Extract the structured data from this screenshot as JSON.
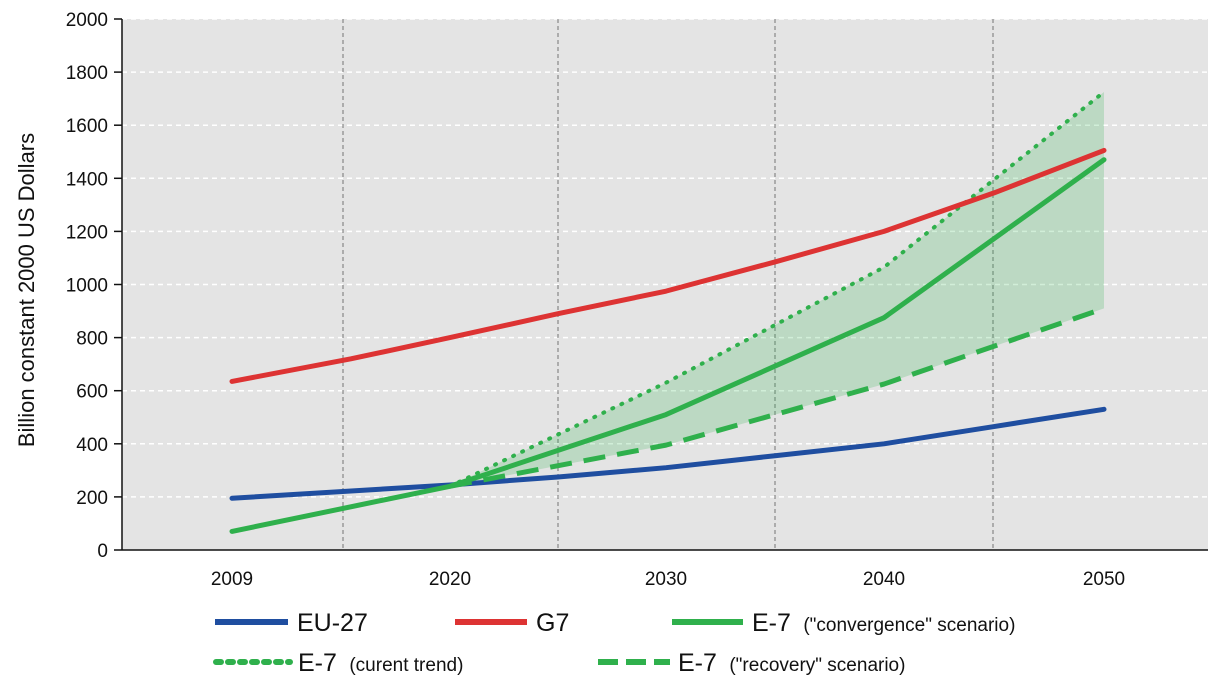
{
  "chart_data": {
    "type": "line",
    "ylabel": "Billion constant 2000 US Dollars",
    "xlabel": "",
    "ylim": [
      0,
      2000
    ],
    "yticks": [
      0,
      200,
      400,
      600,
      800,
      1000,
      1200,
      1400,
      1600,
      1800,
      2000
    ],
    "categories": [
      "2009",
      "2020",
      "2030",
      "2040",
      "2050"
    ],
    "grid": "vertical dashed",
    "legend_placement": "bottom",
    "series": [
      {
        "name": "EU-27",
        "color": "#1f4ea0",
        "style": "solid",
        "x": [
          2009,
          2020,
          2025,
          2030,
          2035,
          2040,
          2045,
          2050
        ],
        "values": [
          195,
          245,
          275,
          310,
          355,
          400,
          465,
          530
        ]
      },
      {
        "name": "G7",
        "color": "#dd3333",
        "style": "solid",
        "x": [
          2009,
          2015,
          2020,
          2025,
          2030,
          2035,
          2040,
          2045,
          2050
        ],
        "values": [
          635,
          720,
          800,
          890,
          975,
          1085,
          1200,
          1345,
          1505
        ]
      },
      {
        "name_parts": [
          "E-7",
          "(\"convergence\" scenario)"
        ],
        "color": "#2fb04c",
        "style": "solid",
        "x": [
          2009,
          2020,
          2030,
          2040,
          2050
        ],
        "values": [
          70,
          240,
          510,
          875,
          1470
        ]
      },
      {
        "name_parts": [
          "E-7",
          "(curent trend)"
        ],
        "color": "#2fb04c",
        "style": "dotted",
        "x": [
          2020,
          2030,
          2040,
          2050
        ],
        "values": [
          240,
          630,
          1065,
          1725
        ]
      },
      {
        "name_parts": [
          "E-7",
          "(\"recovery\" scenario)"
        ],
        "color": "#2fb04c",
        "style": "dashed",
        "x": [
          2020,
          2030,
          2040,
          2050
        ],
        "values": [
          240,
          395,
          625,
          910
        ]
      }
    ],
    "shaded_band": {
      "color": "#2fb04c",
      "between": [
        "E-7 (curent trend)",
        "E-7 (\"recovery\" scenario)"
      ]
    }
  }
}
